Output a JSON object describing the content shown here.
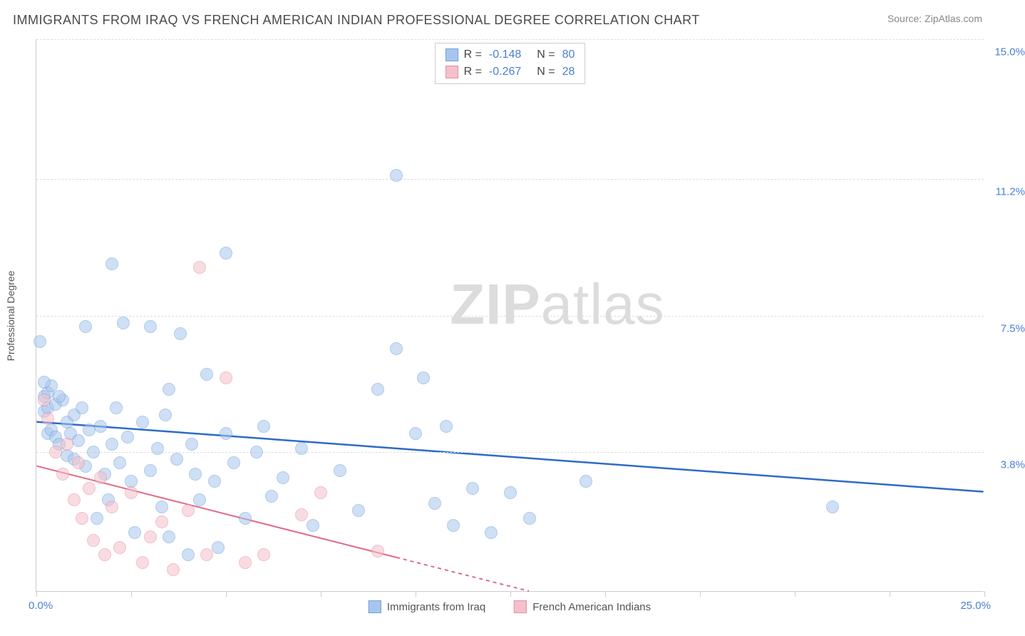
{
  "header": {
    "title": "IMMIGRANTS FROM IRAQ VS FRENCH AMERICAN INDIAN PROFESSIONAL DEGREE CORRELATION CHART",
    "source": "Source: ZipAtlas.com"
  },
  "watermark": {
    "part1": "ZIP",
    "part2": "atlas"
  },
  "chart": {
    "type": "scatter",
    "y_axis_label": "Professional Degree",
    "xlim": [
      0,
      25
    ],
    "ylim": [
      0,
      15
    ],
    "x_origin_label": "0.0%",
    "x_max_label": "25.0%",
    "y_ticks": [
      {
        "value": 3.8,
        "label": "3.8%"
      },
      {
        "value": 7.5,
        "label": "7.5%"
      },
      {
        "value": 11.2,
        "label": "11.2%"
      },
      {
        "value": 15.0,
        "label": "15.0%"
      }
    ],
    "x_tick_positions": [
      0,
      2.5,
      5,
      7.5,
      10,
      12.5,
      15,
      17.5,
      20,
      22.5,
      25
    ],
    "grid_color": "#dddddd",
    "axis_color": "#cccccc",
    "tick_label_color": "#4a7fd4",
    "background_color": "#ffffff",
    "point_radius": 9,
    "point_opacity": 0.55,
    "series": [
      {
        "name": "Immigrants from Iraq",
        "color_fill": "#a8c6ec",
        "color_stroke": "#6d9fe0",
        "trend_color": "#2e6bc7",
        "R": "-0.148",
        "N": "80",
        "trend": {
          "x1": 0,
          "y1": 4.6,
          "x2": 25,
          "y2": 2.7
        },
        "points": [
          [
            0.1,
            6.8
          ],
          [
            0.2,
            5.3
          ],
          [
            0.2,
            4.9
          ],
          [
            0.3,
            5.4
          ],
          [
            0.3,
            4.3
          ],
          [
            0.3,
            5.0
          ],
          [
            0.4,
            5.6
          ],
          [
            0.4,
            4.4
          ],
          [
            0.5,
            5.1
          ],
          [
            0.5,
            4.2
          ],
          [
            0.6,
            4.0
          ],
          [
            0.7,
            5.2
          ],
          [
            0.8,
            4.6
          ],
          [
            0.8,
            3.7
          ],
          [
            0.9,
            4.3
          ],
          [
            1.0,
            4.8
          ],
          [
            1.0,
            3.6
          ],
          [
            1.1,
            4.1
          ],
          [
            1.2,
            5.0
          ],
          [
            1.3,
            3.4
          ],
          [
            1.3,
            7.2
          ],
          [
            1.4,
            4.4
          ],
          [
            1.5,
            3.8
          ],
          [
            1.6,
            2.0
          ],
          [
            1.7,
            4.5
          ],
          [
            1.8,
            3.2
          ],
          [
            1.9,
            2.5
          ],
          [
            2.0,
            8.9
          ],
          [
            2.0,
            4.0
          ],
          [
            2.1,
            5.0
          ],
          [
            2.2,
            3.5
          ],
          [
            2.3,
            7.3
          ],
          [
            2.4,
            4.2
          ],
          [
            2.5,
            3.0
          ],
          [
            2.6,
            1.6
          ],
          [
            2.8,
            4.6
          ],
          [
            3.0,
            3.3
          ],
          [
            3.0,
            7.2
          ],
          [
            3.2,
            3.9
          ],
          [
            3.3,
            2.3
          ],
          [
            3.4,
            4.8
          ],
          [
            3.5,
            5.5
          ],
          [
            3.5,
            1.5
          ],
          [
            3.7,
            3.6
          ],
          [
            3.8,
            7.0
          ],
          [
            4.0,
            1.0
          ],
          [
            4.1,
            4.0
          ],
          [
            4.2,
            3.2
          ],
          [
            4.3,
            2.5
          ],
          [
            4.5,
            5.9
          ],
          [
            4.7,
            3.0
          ],
          [
            4.8,
            1.2
          ],
          [
            5.0,
            4.3
          ],
          [
            5.0,
            9.2
          ],
          [
            5.2,
            3.5
          ],
          [
            5.5,
            2.0
          ],
          [
            5.8,
            3.8
          ],
          [
            6.0,
            4.5
          ],
          [
            6.2,
            2.6
          ],
          [
            6.5,
            3.1
          ],
          [
            7.0,
            3.9
          ],
          [
            7.3,
            1.8
          ],
          [
            8.0,
            3.3
          ],
          [
            8.5,
            2.2
          ],
          [
            9.0,
            5.5
          ],
          [
            9.5,
            6.6
          ],
          [
            9.5,
            11.3
          ],
          [
            10.0,
            4.3
          ],
          [
            10.2,
            5.8
          ],
          [
            10.5,
            2.4
          ],
          [
            10.8,
            4.5
          ],
          [
            11.0,
            1.8
          ],
          [
            11.5,
            2.8
          ],
          [
            12.0,
            1.6
          ],
          [
            12.5,
            2.7
          ],
          [
            13.0,
            2.0
          ],
          [
            14.5,
            3.0
          ],
          [
            21.0,
            2.3
          ],
          [
            0.2,
            5.7
          ],
          [
            0.6,
            5.3
          ]
        ]
      },
      {
        "name": "French American Indians",
        "color_fill": "#f4c0cb",
        "color_stroke": "#e88ba1",
        "trend_color": "#e06a87",
        "R": "-0.267",
        "N": "28",
        "trend": {
          "x1": 0,
          "y1": 3.4,
          "x2": 13,
          "y2": 0,
          "dash_from_x": 9.5
        },
        "points": [
          [
            0.2,
            5.2
          ],
          [
            0.3,
            4.7
          ],
          [
            0.5,
            3.8
          ],
          [
            0.7,
            3.2
          ],
          [
            0.8,
            4.0
          ],
          [
            1.0,
            2.5
          ],
          [
            1.1,
            3.5
          ],
          [
            1.2,
            2.0
          ],
          [
            1.4,
            2.8
          ],
          [
            1.5,
            1.4
          ],
          [
            1.7,
            3.1
          ],
          [
            1.8,
            1.0
          ],
          [
            2.0,
            2.3
          ],
          [
            2.2,
            1.2
          ],
          [
            2.5,
            2.7
          ],
          [
            2.8,
            0.8
          ],
          [
            3.0,
            1.5
          ],
          [
            3.3,
            1.9
          ],
          [
            3.6,
            0.6
          ],
          [
            4.0,
            2.2
          ],
          [
            4.3,
            8.8
          ],
          [
            4.5,
            1.0
          ],
          [
            5.0,
            5.8
          ],
          [
            5.5,
            0.8
          ],
          [
            6.0,
            1.0
          ],
          [
            7.0,
            2.1
          ],
          [
            7.5,
            2.7
          ],
          [
            9.0,
            1.1
          ]
        ]
      }
    ],
    "legend": {
      "r_label": "R =",
      "n_label": "N ="
    },
    "bottom_legend": [
      {
        "label": "Immigrants from Iraq",
        "fill": "#a8c6ec",
        "stroke": "#6d9fe0"
      },
      {
        "label": "French American Indians",
        "fill": "#f4c0cb",
        "stroke": "#e88ba1"
      }
    ]
  }
}
